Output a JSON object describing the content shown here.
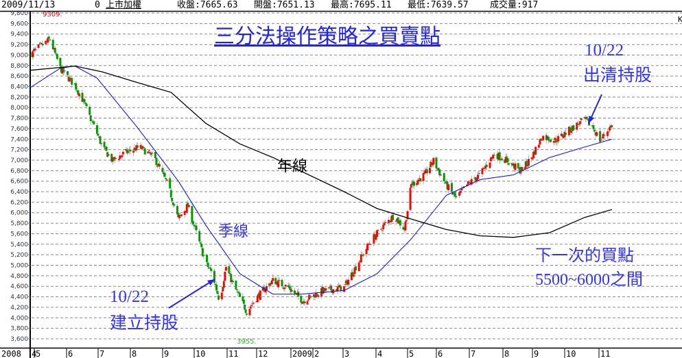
{
  "header": {
    "date": "2009/11/13",
    "code": "0",
    "index_name": "上市加權",
    "close": "收盤:7665.63",
    "open": "開盤:7651.13",
    "high": "最高:7695.11",
    "low": "最低:7639.57",
    "volume": "成交量:917",
    "k_label": "K"
  },
  "annotations": {
    "title": "三分法操作策略之買賣點",
    "sell_date": "10/22",
    "sell_text": "出清持股",
    "buy_date": "10/22",
    "buy_text": "建立持股",
    "year_line": "年線",
    "quarter_line": "季線",
    "next_buy_1": "下一次的買點",
    "next_buy_2": "5500~6000之間",
    "max_label": "9309.",
    "min_label": "3955."
  },
  "colors": {
    "up": "#ff0000",
    "down": "#009900",
    "quarter_ma": "#0000ff",
    "year_ma": "#000000",
    "annotation": "#3333ff",
    "max_label": "#ff0000",
    "min_label": "#00dd00"
  },
  "chart_data": {
    "type": "candlestick",
    "ylim": [
      3600,
      9800
    ],
    "y_ticks": [
      "9,800",
      "9,600",
      "9,400",
      "9,200",
      "9,000",
      "8,800",
      "8,600",
      "8,400",
      "8,200",
      "8,000",
      "7,800",
      "7,600",
      "7,400",
      "7,200",
      "7,000",
      "6,800",
      "6,600",
      "6,400",
      "6,200",
      "6,000",
      "5,800",
      "5,600",
      "5,400",
      "5,200",
      "5,000",
      "4,800",
      "4,600",
      "4,400",
      "4,200",
      "4,000",
      "3,800",
      "3,600"
    ],
    "x_ticks": [
      "2008",
      "4",
      "5",
      "6",
      "7",
      "8",
      "9",
      "10",
      "11",
      "12",
      "2009",
      "2",
      "3",
      "4",
      "5",
      "6",
      "7",
      "8",
      "9",
      "10",
      "11"
    ],
    "grid": true,
    "max": 9309,
    "min": 3955,
    "price_path": [
      [
        "2008-04-28",
        9030
      ],
      [
        "2008-05-16",
        9300
      ],
      [
        "2008-05-26",
        8745
      ],
      [
        "2008-06-09",
        8420
      ],
      [
        "2008-06-16",
        8160
      ],
      [
        "2008-06-23",
        7830
      ],
      [
        "2008-06-30",
        7510
      ],
      [
        "2008-07-05",
        7250
      ],
      [
        "2008-07-15",
        6990
      ],
      [
        "2008-07-25",
        7120
      ],
      [
        "2008-08-10",
        7250
      ],
      [
        "2008-08-24",
        7050
      ],
      [
        "2008-09-06",
        6530
      ],
      [
        "2008-09-16",
        5880
      ],
      [
        "2008-09-25",
        6140
      ],
      [
        "2008-10-05",
        5490
      ],
      [
        "2008-10-12",
        5040
      ],
      [
        "2008-10-18",
        4840
      ],
      [
        "2008-10-25",
        4320
      ],
      [
        "2008-10-31",
        4970
      ],
      [
        "2008-11-07",
        4640
      ],
      [
        "2008-11-21",
        4120
      ],
      [
        "2008-12-01",
        4380
      ],
      [
        "2008-12-19",
        4710
      ],
      [
        "2009-01-05",
        4580
      ],
      [
        "2009-01-17",
        4380
      ],
      [
        "2009-01-21",
        4320
      ],
      [
        "2009-02-10",
        4510
      ],
      [
        "2009-03-02",
        4580
      ],
      [
        "2009-03-13",
        4970
      ],
      [
        "2009-03-26",
        5430
      ],
      [
        "2009-04-08",
        5750
      ],
      [
        "2009-04-18",
        5950
      ],
      [
        "2009-04-28",
        5690
      ],
      [
        "2009-05-05",
        6530
      ],
      [
        "2009-05-20",
        6730
      ],
      [
        "2009-05-29",
        6990
      ],
      [
        "2009-06-10",
        6530
      ],
      [
        "2009-06-19",
        6270
      ],
      [
        "2009-06-29",
        6530
      ],
      [
        "2009-07-11",
        6730
      ],
      [
        "2009-07-24",
        7120
      ],
      [
        "2009-08-05",
        6990
      ],
      [
        "2009-08-20",
        6790
      ],
      [
        "2009-08-31",
        7050
      ],
      [
        "2009-09-10",
        7450
      ],
      [
        "2009-09-23",
        7380
      ],
      [
        "2009-10-05",
        7570
      ],
      [
        "2009-10-19",
        7770
      ],
      [
        "2009-10-26",
        7640
      ],
      [
        "2009-11-02",
        7380
      ],
      [
        "2009-11-13",
        7665
      ]
    ],
    "series": [
      {
        "name": "季線",
        "values": [
          [
            "2008-04-25",
            8380
          ],
          [
            "2008-05-26",
            8750
          ],
          [
            "2008-06-09",
            8790
          ],
          [
            "2008-06-30",
            8560
          ],
          [
            "2008-08-07",
            7640
          ],
          [
            "2008-09-16",
            6600
          ],
          [
            "2008-10-12",
            5760
          ],
          [
            "2008-11-14",
            4840
          ],
          [
            "2008-12-19",
            4450
          ],
          [
            "2009-01-19",
            4450
          ],
          [
            "2009-03-02",
            4520
          ],
          [
            "2009-04-02",
            4840
          ],
          [
            "2009-05-05",
            5500
          ],
          [
            "2009-06-10",
            6330
          ],
          [
            "2009-07-11",
            6630
          ],
          [
            "2009-08-12",
            6720
          ],
          [
            "2009-09-17",
            7050
          ],
          [
            "2009-10-19",
            7250
          ],
          [
            "2009-11-13",
            7400
          ]
        ]
      },
      {
        "name": "年線",
        "values": [
          [
            "2008-04-25",
            8710
          ],
          [
            "2008-06-09",
            8790
          ],
          [
            "2008-07-05",
            8680
          ],
          [
            "2008-08-07",
            8480
          ],
          [
            "2008-09-09",
            8290
          ],
          [
            "2008-10-12",
            7700
          ],
          [
            "2008-11-14",
            7310
          ],
          [
            "2008-12-19",
            7050
          ],
          [
            "2009-01-19",
            6790
          ],
          [
            "2009-03-02",
            6400
          ],
          [
            "2009-04-02",
            6080
          ],
          [
            "2009-05-05",
            5880
          ],
          [
            "2009-06-10",
            5680
          ],
          [
            "2009-07-11",
            5560
          ],
          [
            "2009-08-12",
            5530
          ],
          [
            "2009-09-17",
            5620
          ],
          [
            "2009-10-19",
            5910
          ],
          [
            "2009-11-13",
            6060
          ]
        ]
      }
    ]
  }
}
